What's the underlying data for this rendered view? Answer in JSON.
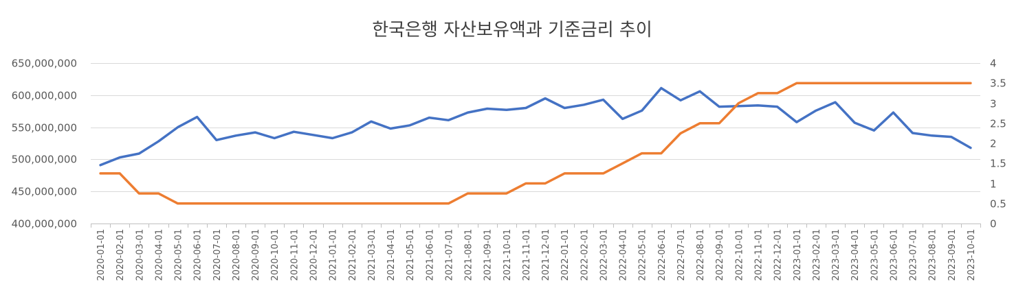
{
  "chart_data": {
    "type": "line",
    "title": "한국은행 자산보유액과 기준금리 추이",
    "categories": [
      "2020-01-01",
      "2020-02-01",
      "2020-03-01",
      "2020-04-01",
      "2020-05-01",
      "2020-06-01",
      "2020-07-01",
      "2020-08-01",
      "2020-09-01",
      "2020-10-01",
      "2020-11-01",
      "2020-12-01",
      "2021-01-01",
      "2021-02-01",
      "2021-03-01",
      "2021-04-01",
      "2021-05-01",
      "2021-06-01",
      "2021-07-01",
      "2021-08-01",
      "2021-09-01",
      "2021-10-01",
      "2021-11-01",
      "2021-12-01",
      "2022-01-01",
      "2022-02-01",
      "2022-03-01",
      "2022-04-01",
      "2022-05-01",
      "2022-06-01",
      "2022-07-01",
      "2022-08-01",
      "2022-09-01",
      "2022-10-01",
      "2022-11-01",
      "2022-12-01",
      "2023-01-01",
      "2023-02-01",
      "2023-03-01",
      "2023-04-01",
      "2023-05-01",
      "2023-06-01",
      "2023-07-01",
      "2023-08-01",
      "2023-09-01",
      "2023-10-01"
    ],
    "series": [
      {
        "name": "자산보유액",
        "axis": "left",
        "color": "#4472C4",
        "values": [
          491000000,
          503000000,
          509000000,
          528000000,
          550000000,
          566000000,
          530000000,
          537000000,
          542000000,
          533000000,
          543000000,
          538000000,
          533000000,
          542000000,
          559000000,
          548000000,
          553000000,
          565000000,
          561000000,
          573000000,
          579000000,
          577000000,
          580000000,
          595000000,
          580000000,
          585000000,
          593000000,
          563000000,
          576000000,
          611000000,
          592000000,
          606000000,
          582000000,
          583000000,
          584000000,
          582000000,
          558000000,
          576000000,
          589000000,
          557000000,
          545000000,
          573000000,
          541000000,
          537000000,
          535000000,
          518000000
        ]
      },
      {
        "name": "기준금리",
        "axis": "right",
        "color": "#ED7D31",
        "values": [
          1.25,
          1.25,
          0.75,
          0.75,
          0.5,
          0.5,
          0.5,
          0.5,
          0.5,
          0.5,
          0.5,
          0.5,
          0.5,
          0.5,
          0.5,
          0.5,
          0.5,
          0.5,
          0.5,
          0.75,
          0.75,
          0.75,
          1.0,
          1.0,
          1.25,
          1.25,
          1.25,
          1.5,
          1.75,
          1.75,
          2.25,
          2.5,
          2.5,
          3.0,
          3.25,
          3.25,
          3.5,
          3.5,
          3.5,
          3.5,
          3.5,
          3.5,
          3.5,
          3.5,
          3.5,
          3.5
        ]
      }
    ],
    "y_left": {
      "min": 400000000,
      "max": 650000000,
      "ticks": [
        400000000,
        450000000,
        500000000,
        550000000,
        600000000,
        650000000
      ],
      "tick_labels": [
        "400,000,000",
        "450,000,000",
        "500,000,000",
        "550,000,000",
        "600,000,000",
        "650,000,000"
      ]
    },
    "y_right": {
      "min": 0,
      "max": 4,
      "ticks": [
        0,
        0.5,
        1,
        1.5,
        2,
        2.5,
        3,
        3.5,
        4
      ],
      "tick_labels": [
        "0",
        "0.5",
        "1",
        "1.5",
        "2",
        "2.5",
        "3",
        "3.5",
        "4"
      ]
    },
    "grid": true,
    "legend": "none",
    "style": {
      "grid_color": "#D9D9D9",
      "axis_color": "#BFBFBF",
      "text_color": "#595959"
    }
  }
}
